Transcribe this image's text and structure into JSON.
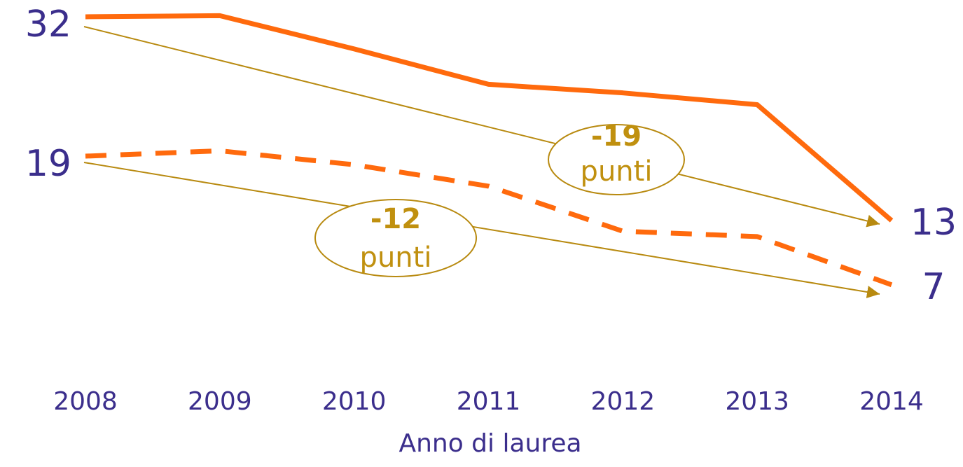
{
  "chart_data": {
    "type": "line",
    "x_label": "Anno di laurea",
    "categories": [
      "2008",
      "2009",
      "2010",
      "2011",
      "2012",
      "2013",
      "2014"
    ],
    "series": [
      {
        "name": null,
        "color": "#ff6a0d",
        "dash": false,
        "values": [
          32,
          32.1,
          29,
          25.7,
          24.9,
          23.8,
          13
        ]
      },
      {
        "name": null,
        "color": "#ff6a0d",
        "dash": true,
        "values": [
          19,
          19.5,
          18.2,
          16.2,
          12,
          11.5,
          7
        ]
      }
    ],
    "ylim": [
      0,
      35
    ],
    "annotations": [
      {
        "value": "-19",
        "unit": "punti"
      },
      {
        "value": "-12",
        "unit": "punti"
      }
    ]
  }
}
